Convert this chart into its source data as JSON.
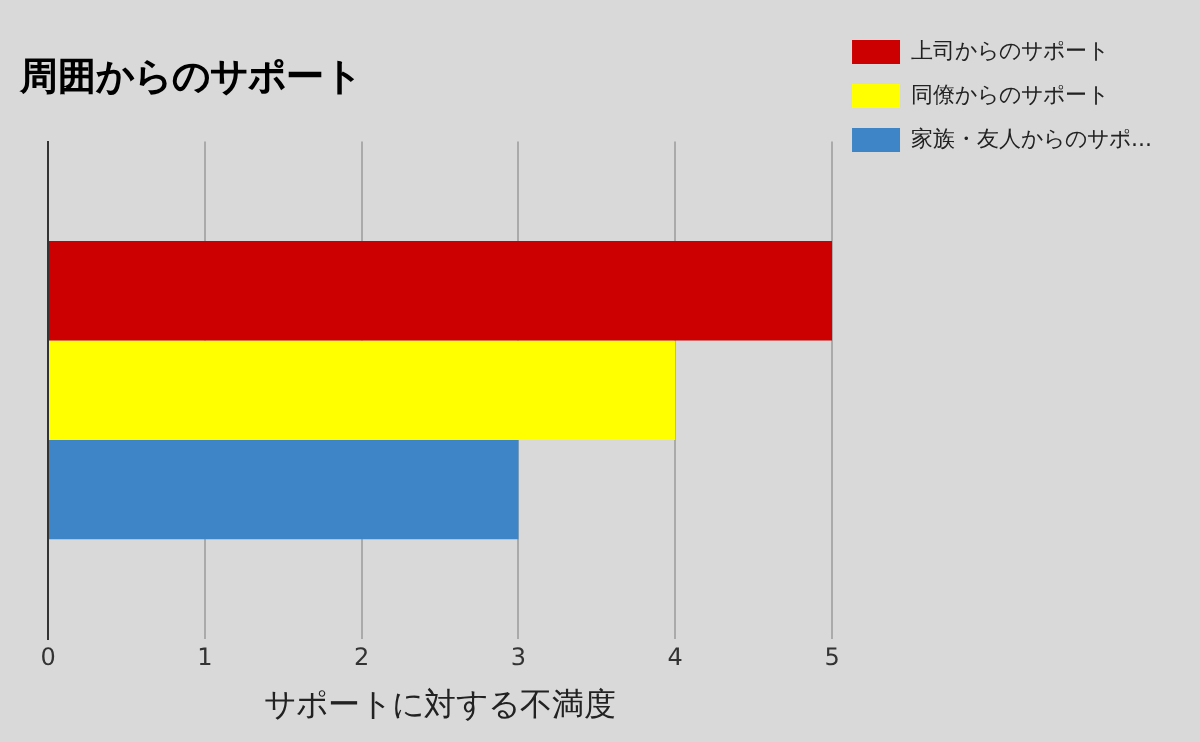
{
  "chart_data": {
    "type": "bar",
    "orientation": "horizontal",
    "title": "周囲からのサポート",
    "xlabel": "サポートに対する不満度",
    "categories": [
      null
    ],
    "series": [
      {
        "name": "上司からのサポート",
        "color": "#cc0000",
        "values": [
          5
        ]
      },
      {
        "name": "同僚からのサポート",
        "color": "#ffff00",
        "values": [
          4
        ]
      },
      {
        "name": "家族・友人からのサポ...",
        "color": "#3d85c6",
        "values": [
          3
        ]
      }
    ],
    "xlim": [
      0,
      5
    ],
    "xticks": [
      0,
      1,
      2,
      3,
      4,
      5
    ],
    "grid": "x",
    "legend": "top right"
  }
}
